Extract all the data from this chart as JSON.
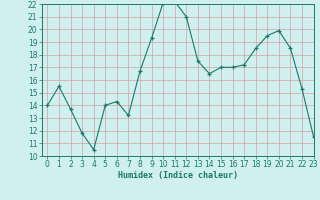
{
  "x": [
    0,
    1,
    2,
    3,
    4,
    5,
    6,
    7,
    8,
    9,
    10,
    11,
    12,
    13,
    14,
    15,
    16,
    17,
    18,
    19,
    20,
    21,
    22,
    23
  ],
  "y": [
    14,
    15.5,
    13.7,
    11.8,
    10.5,
    14,
    14.3,
    13.2,
    16.7,
    19.3,
    22.1,
    22.2,
    21.0,
    17.5,
    16.5,
    17.0,
    17.0,
    17.2,
    18.5,
    19.5,
    19.9,
    18.5,
    15.3,
    11.5
  ],
  "xlabel": "Humidex (Indice chaleur)",
  "ylim": [
    10,
    22
  ],
  "xlim": [
    -0.5,
    23
  ],
  "yticks": [
    10,
    11,
    12,
    13,
    14,
    15,
    16,
    17,
    18,
    19,
    20,
    21,
    22
  ],
  "xticks": [
    0,
    1,
    2,
    3,
    4,
    5,
    6,
    7,
    8,
    9,
    10,
    11,
    12,
    13,
    14,
    15,
    16,
    17,
    18,
    19,
    20,
    21,
    22,
    23
  ],
  "line_color": "#1a7a6a",
  "marker": "+",
  "bg_color": "#cff0ee",
  "grid_color": "#b8ddd9",
  "xlabel_fontsize": 6.0,
  "tick_fontsize": 5.5
}
